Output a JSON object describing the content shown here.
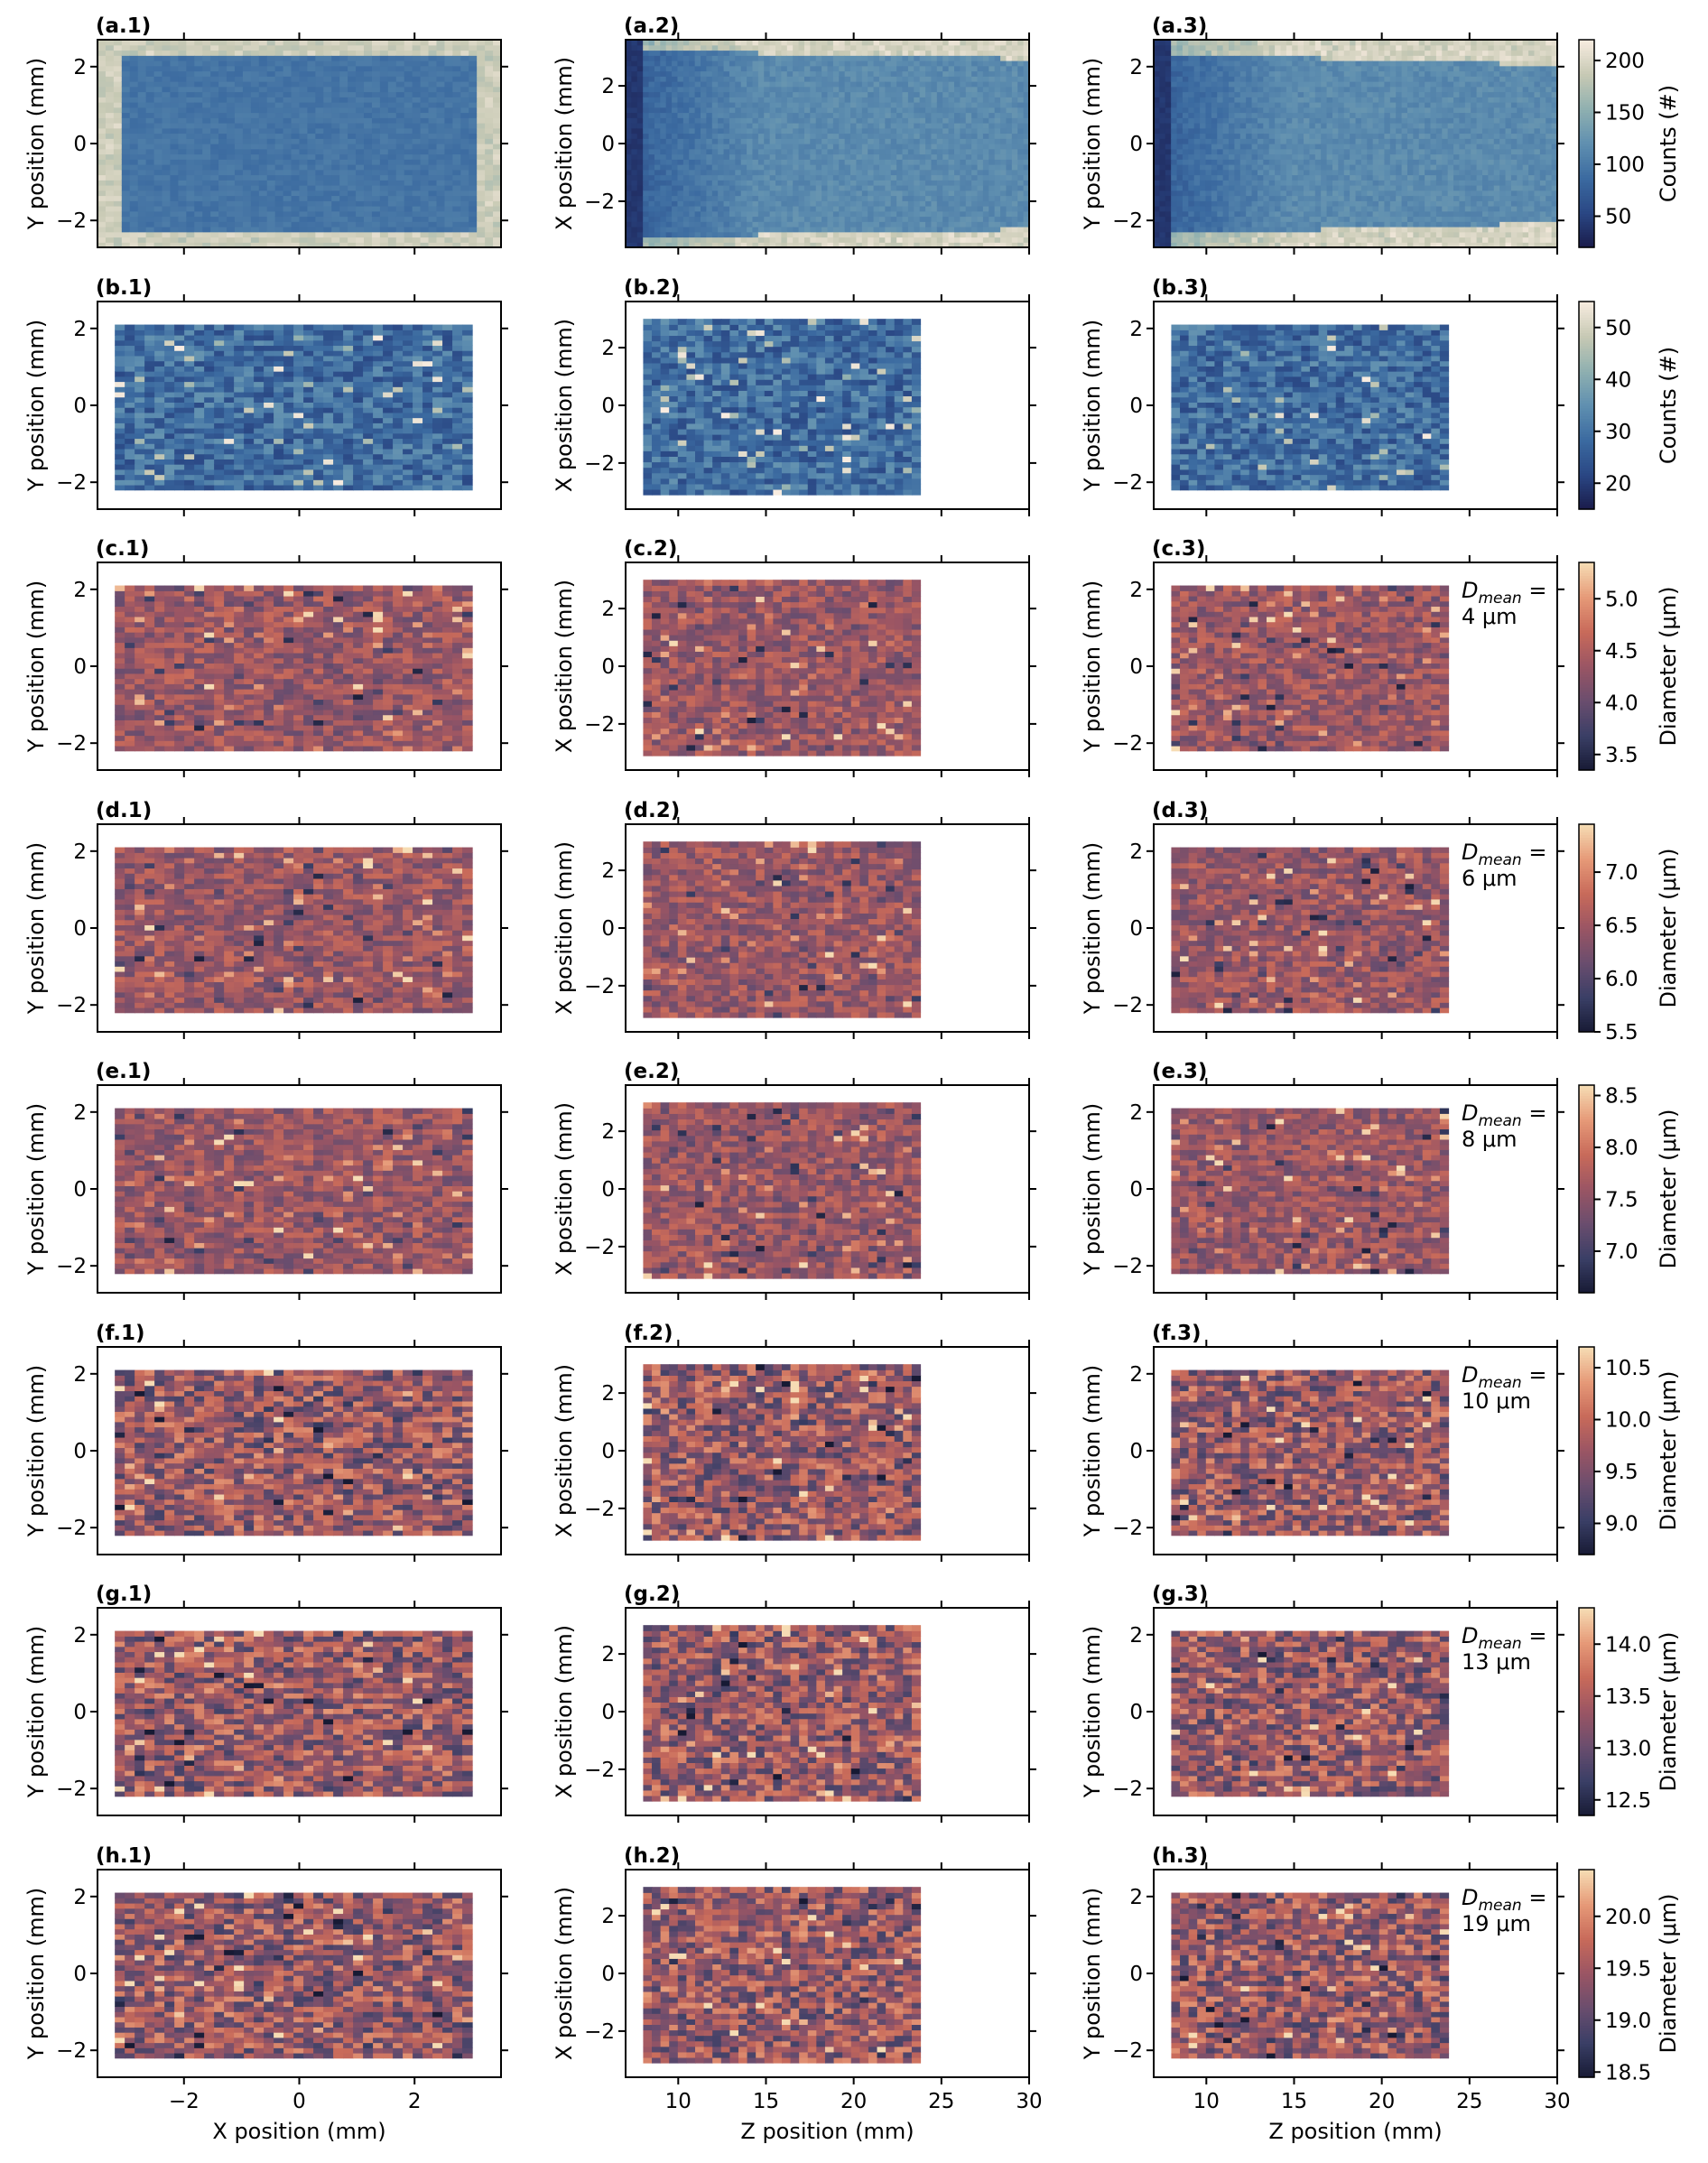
{
  "chart_data": {
    "type": "heatmap",
    "layout": {
      "rows": 8,
      "cols": 3
    },
    "col_axes": [
      {
        "xlabel": "X position (mm)",
        "ylabel": "Y position (mm)",
        "xlim": [
          -3.5,
          3.5
        ],
        "ylim": [
          -2.7,
          2.7
        ],
        "xticks": [
          "−2",
          "0",
          "2"
        ],
        "yticks": [
          "−2",
          "0",
          "2"
        ]
      },
      {
        "xlabel": "Z position (mm)",
        "ylabel": "X position (mm)",
        "xlim": [
          7.0,
          30.0
        ],
        "ylim": [
          -3.6,
          3.6
        ],
        "xticks": [
          "10",
          "15",
          "20",
          "25",
          "30"
        ],
        "yticks": [
          "−2",
          "0",
          "2"
        ]
      },
      {
        "xlabel": "Z position (mm)",
        "ylabel": "Y position (mm)",
        "xlim": [
          7.0,
          30.0
        ],
        "ylim": [
          -2.7,
          2.7
        ],
        "xticks": [
          "10",
          "15",
          "20",
          "25",
          "30"
        ],
        "yticks": [
          "−2",
          "0",
          "2"
        ]
      }
    ],
    "data_extent": [
      {
        "x": [
          -3.2,
          3.0
        ],
        "y": [
          -2.2,
          2.1
        ]
      },
      {
        "x": [
          8.0,
          23.8
        ],
        "y": [
          -3.1,
          3.0
        ]
      },
      {
        "x": [
          8.0,
          23.8
        ],
        "y": [
          -2.2,
          2.1
        ]
      }
    ],
    "rows": [
      {
        "letter": "a",
        "colorbar_label": "Counts (#)",
        "cmap": "counts",
        "vmin": 20,
        "vmax": 220,
        "cbar_ticks": [
          "50",
          "100",
          "150",
          "200"
        ],
        "annotation": null
      },
      {
        "letter": "b",
        "colorbar_label": "Counts (#)",
        "cmap": "counts",
        "vmin": 15,
        "vmax": 55,
        "cbar_ticks": [
          "20",
          "30",
          "40",
          "50"
        ],
        "annotation": null
      },
      {
        "letter": "c",
        "colorbar_label": "Diameter (μm)",
        "cmap": "diam",
        "vmin": 3.35,
        "vmax": 5.35,
        "cbar_ticks": [
          "3.5",
          "4.0",
          "4.5",
          "5.0"
        ],
        "annotation": {
          "prefix": "D",
          "sub": "mean",
          "eq": " =",
          "value": "4 μm"
        }
      },
      {
        "letter": "d",
        "colorbar_label": "Diameter (μm)",
        "cmap": "diam",
        "vmin": 5.5,
        "vmax": 7.45,
        "cbar_ticks": [
          "5.5",
          "6.0",
          "6.5",
          "7.0"
        ],
        "annotation": {
          "prefix": "D",
          "sub": "mean",
          "eq": " =",
          "value": "6 μm"
        }
      },
      {
        "letter": "e",
        "colorbar_label": "Diameter (μm)",
        "cmap": "diam",
        "vmin": 6.6,
        "vmax": 8.6,
        "cbar_ticks": [
          "7.0",
          "7.5",
          "8.0",
          "8.5"
        ],
        "annotation": {
          "prefix": "D",
          "sub": "mean",
          "eq": " =",
          "value": "8 μm"
        }
      },
      {
        "letter": "f",
        "colorbar_label": "Diameter (μm)",
        "cmap": "diam",
        "vmin": 8.7,
        "vmax": 10.7,
        "cbar_ticks": [
          "9.0",
          "9.5",
          "10.0",
          "10.5"
        ],
        "annotation": {
          "prefix": "D",
          "sub": "mean",
          "eq": " =",
          "value": "10 μm"
        }
      },
      {
        "letter": "g",
        "colorbar_label": "Diameter (μm)",
        "cmap": "diam",
        "vmin": 12.35,
        "vmax": 14.35,
        "cbar_ticks": [
          "12.5",
          "13.0",
          "13.5",
          "14.0"
        ],
        "annotation": {
          "prefix": "D",
          "sub": "mean",
          "eq": " =",
          "value": "13 μm"
        }
      },
      {
        "letter": "h",
        "colorbar_label": "Diameter (μm)",
        "cmap": "diam",
        "vmin": 18.45,
        "vmax": 20.45,
        "cbar_ticks": [
          "18.5",
          "19.0",
          "19.5",
          "20.0"
        ],
        "annotation": {
          "prefix": "D",
          "sub": "mean",
          "eq": " =",
          "value": "19 μm"
        }
      }
    ],
    "colormaps": {
      "counts": [
        "#1a1b4a",
        "#2a4784",
        "#3b6aa0",
        "#5f8fb0",
        "#8fb0b0",
        "#c7c9b4",
        "#f8ece0"
      ],
      "diam": [
        "#171a34",
        "#3a3f66",
        "#6a4d6e",
        "#9a5564",
        "#c86a5a",
        "#e69a78",
        "#f6dcb4"
      ]
    }
  }
}
